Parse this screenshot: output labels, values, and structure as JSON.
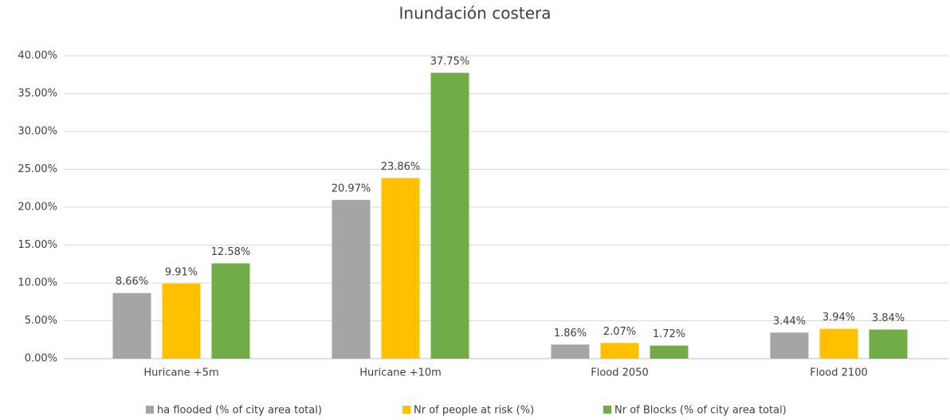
{
  "chart_data": {
    "type": "bar",
    "title": "Inundación costera",
    "categories": [
      "Huricane +5m",
      "Huricane +10m",
      "Flood 2050",
      "Flood 2100"
    ],
    "series": [
      {
        "name": "ha flooded (% of city area total)",
        "color": "#a5a5a5",
        "values": [
          8.66,
          20.97,
          1.86,
          3.44
        ],
        "value_labels": [
          "8.66%",
          "20.97%",
          "1.86%",
          "3.44%"
        ]
      },
      {
        "name": "Nr of people at risk (%)",
        "color": "#ffc000",
        "values": [
          9.91,
          23.86,
          2.07,
          3.94
        ],
        "value_labels": [
          "9.91%",
          "23.86%",
          "2.07%",
          "3.94%"
        ]
      },
      {
        "name": "Nr of Blocks (% of city area total)",
        "color": "#70ad47",
        "values": [
          12.58,
          37.75,
          1.72,
          3.84
        ],
        "value_labels": [
          "12.58%",
          "37.75%",
          "1.72%",
          "3.84%"
        ]
      }
    ],
    "ylim": [
      0,
      40
    ],
    "yticks": [
      {
        "value": 0,
        "label": "0.00%"
      },
      {
        "value": 5,
        "label": "5.00%"
      },
      {
        "value": 10,
        "label": "10.00%"
      },
      {
        "value": 15,
        "label": "15.00%"
      },
      {
        "value": 20,
        "label": "20.00%"
      },
      {
        "value": 25,
        "label": "25.00%"
      },
      {
        "value": 30,
        "label": "30.00%"
      },
      {
        "value": 35,
        "label": "35.00%"
      },
      {
        "value": 40,
        "label": "40.00%"
      }
    ],
    "grid": true,
    "legend": "bottom"
  }
}
